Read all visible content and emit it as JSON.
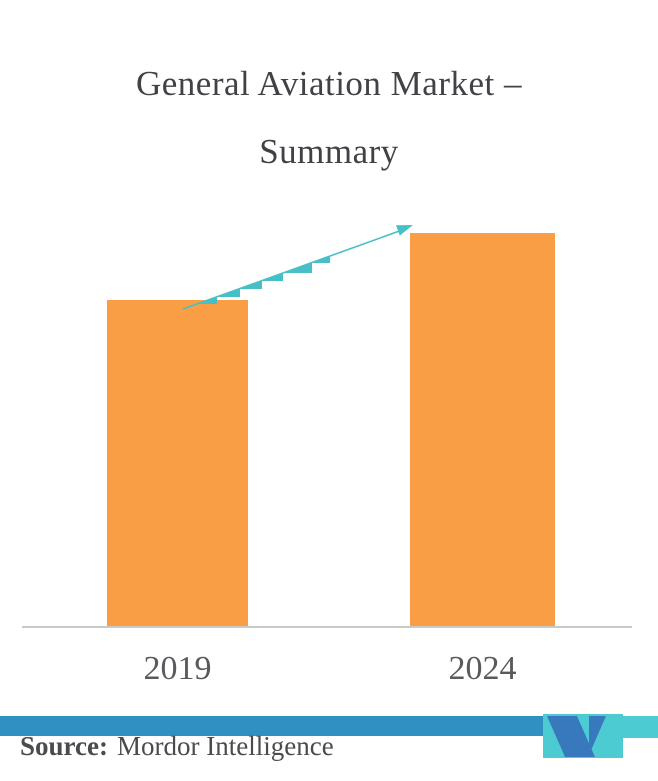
{
  "title": {
    "line1": "General Aviation Market –",
    "line2": "Summary",
    "full": "General Aviation Market – Summary"
  },
  "chart_data": {
    "type": "bar",
    "title": "General Aviation Market – Summary",
    "categories": [
      "2019",
      "2024"
    ],
    "values_relative": [
      0.83,
      1.0
    ],
    "value_axis_shown": false,
    "value_labels_shown": false,
    "xlabel": "",
    "ylabel": "",
    "legend": "none",
    "grid": "off",
    "annotations": [
      "Upward teal growth arrow from top of 2019 bar to top of 2024 bar",
      "Small step-triangle accents beneath the arrow line suggesting stepwise growth"
    ],
    "colors": {
      "bar": "#FA9E45",
      "arrow": "#46C0C6",
      "axis_line": "#C9C9C9",
      "tick_label_text": "#5A5A5E",
      "title_text": "#414146"
    }
  },
  "footer": {
    "source_label": "Source:",
    "source_value": "Mordor Intelligence",
    "text_color": "#4A4B4F",
    "bar_color_blue": "#3090BF",
    "bar_color_teal": "#4CCBD2",
    "logo": {
      "name": "mordor-intelligence-logo",
      "blue": "#3879BE",
      "teal": "#4CCBD2"
    }
  }
}
